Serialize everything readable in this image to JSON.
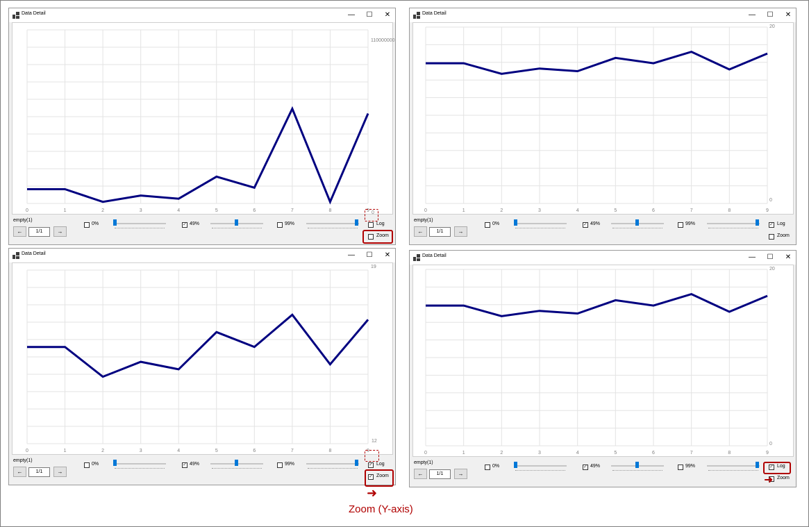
{
  "window_title": "Data Detail",
  "series_label": "empty(1)",
  "page_label": "1/1",
  "nav": {
    "prev": "←",
    "next": "→"
  },
  "controls": {
    "minimize": "—",
    "maximize": "☐",
    "close": "✕"
  },
  "thresholds": {
    "low": "0%",
    "mid": "49%",
    "high": "99%"
  },
  "options": {
    "log": "Log",
    "zoom": "Zoom"
  },
  "annotation": "Zoom (Y-axis)",
  "colors": {
    "line": "#000080",
    "accent": "#0078d7",
    "highlight": "#b00000"
  },
  "panels": [
    {
      "ytop": "110000000",
      "ybottom": "0",
      "log_checked": false,
      "zoom_checked": false,
      "mid_checked": true
    },
    {
      "ytop": "20",
      "ybottom": "0",
      "log_checked": true,
      "zoom_checked": false,
      "mid_checked": true
    },
    {
      "ytop": "19",
      "ybottom": "12",
      "log_checked": true,
      "zoom_checked": true,
      "mid_checked": true
    },
    {
      "ytop": "20",
      "ybottom": "0",
      "log_checked": true,
      "zoom_checked": false,
      "mid_checked": true
    }
  ],
  "chart_data": [
    {
      "type": "line",
      "x": [
        0,
        1,
        2,
        3,
        4,
        5,
        6,
        7,
        8,
        9
      ],
      "xticks": [
        "0",
        "1",
        "2",
        "3",
        "4",
        "5",
        "6",
        "7",
        "8",
        "9"
      ],
      "values": [
        9000000,
        9000000,
        1000000,
        5000000,
        3000000,
        17000000,
        10000000,
        60000000,
        1000000,
        57000000
      ],
      "ylim": [
        0,
        110000000
      ],
      "scale": "linear"
    },
    {
      "type": "line",
      "x": [
        0,
        1,
        2,
        3,
        4,
        5,
        6,
        7,
        8,
        9
      ],
      "xticks": [
        "0",
        "1",
        "2",
        "3",
        "4",
        "5",
        "6",
        "7",
        "8",
        "9"
      ],
      "values": [
        15.9,
        15.9,
        14.7,
        15.3,
        15.0,
        16.5,
        15.9,
        17.2,
        15.2,
        17.0
      ],
      "ylim": [
        0,
        20
      ],
      "scale": "log"
    },
    {
      "type": "line",
      "x": [
        0,
        1,
        2,
        3,
        4,
        5,
        6,
        7,
        8,
        9
      ],
      "xticks": [
        "0",
        "1",
        "2",
        "3",
        "4",
        "5",
        "6",
        "7",
        "8",
        "9"
      ],
      "values": [
        15.9,
        15.9,
        14.7,
        15.3,
        15.0,
        16.5,
        15.9,
        17.2,
        15.2,
        17.0
      ],
      "ylim": [
        12,
        19
      ],
      "scale": "log-zoom"
    },
    {
      "type": "line",
      "x": [
        0,
        1,
        2,
        3,
        4,
        5,
        6,
        7,
        8,
        9
      ],
      "xticks": [
        "0",
        "1",
        "2",
        "3",
        "4",
        "5",
        "6",
        "7",
        "8",
        "9"
      ],
      "values": [
        15.9,
        15.9,
        14.7,
        15.3,
        15.0,
        16.5,
        15.9,
        17.2,
        15.2,
        17.0
      ],
      "ylim": [
        0,
        20
      ],
      "scale": "log"
    }
  ]
}
